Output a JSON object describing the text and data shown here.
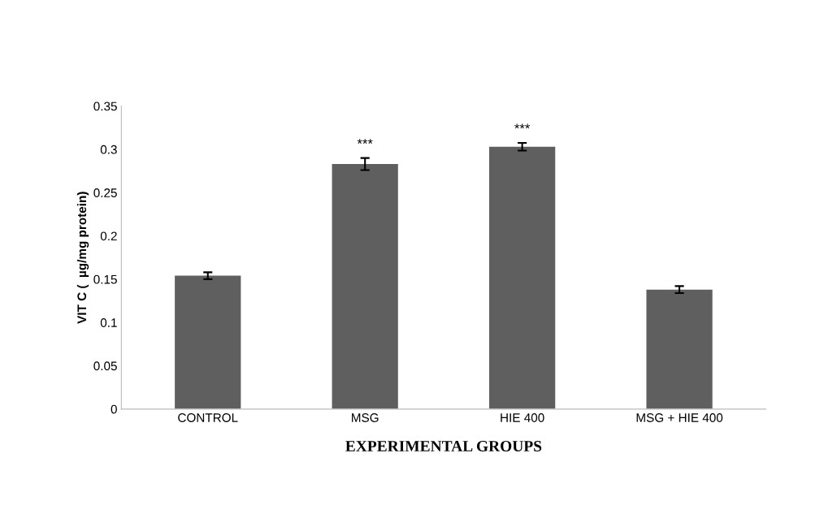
{
  "chart_data": {
    "type": "bar",
    "xlabel": "EXPERIMENTAL GROUPS",
    "ylabel": "VIT C (  µg/mg protein)",
    "categories": [
      "CONTROL",
      "MSG",
      "HIE 400",
      "MSG + HIE 400"
    ],
    "values": [
      0.154,
      0.283,
      0.303,
      0.138
    ],
    "errors": [
      0.004,
      0.007,
      0.0045,
      0.004
    ],
    "color": "#5f5f5f",
    "value_labels": [
      null,
      "***",
      "***",
      null
    ],
    "ylim": [
      0,
      0.35
    ],
    "yticks": [
      {
        "value": 0,
        "label": "0"
      },
      0.05,
      0.1,
      0.15,
      0.2,
      0.25,
      0.3,
      0.35
    ],
    "grid": false,
    "legend": false
  }
}
